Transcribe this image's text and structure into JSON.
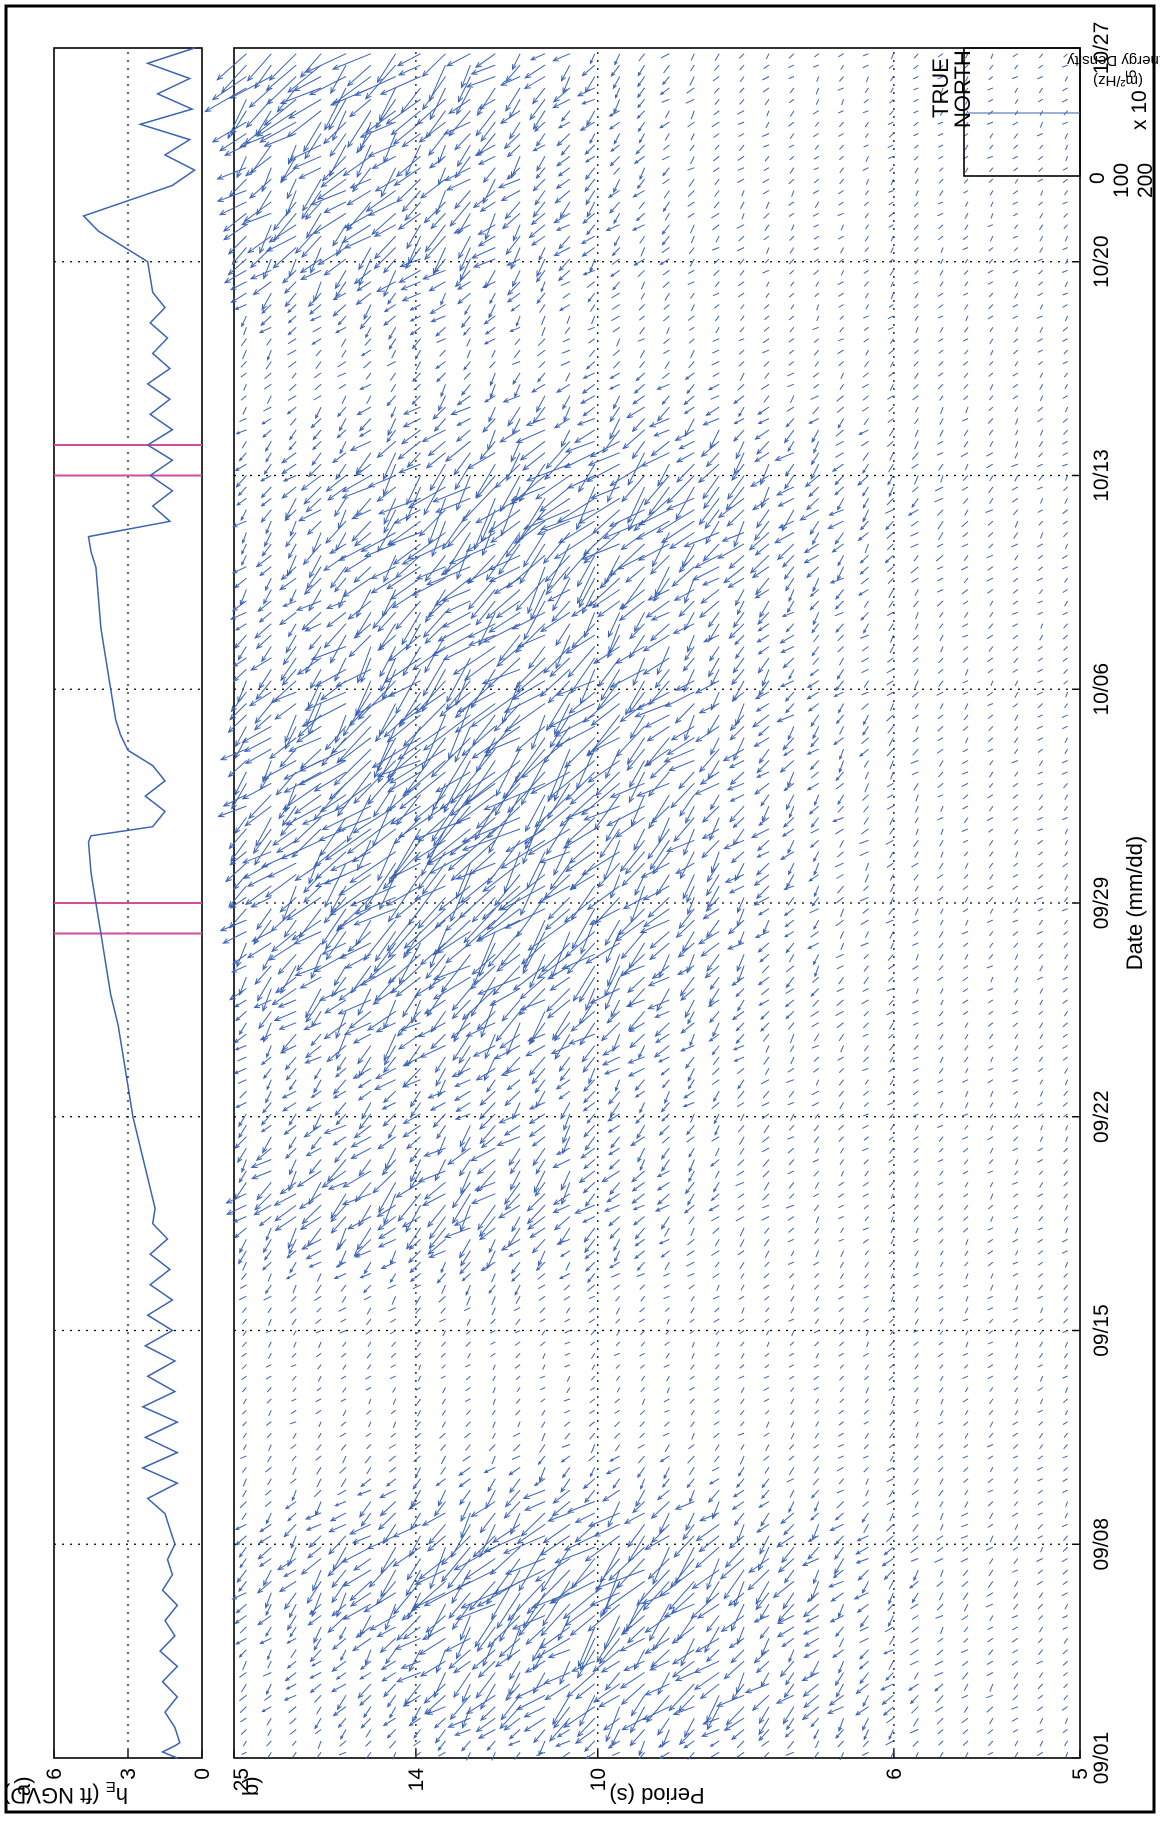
{
  "chart_data": [
    {
      "panel_tag": "a)",
      "type": "line",
      "ylabel": "h",
      "ylabel_sub": "E",
      "ylabel_unit": " (ft NGVD)",
      "ylim": [
        0,
        6
      ],
      "yticks": [
        0,
        3,
        6
      ],
      "grid": true,
      "series": [
        {
          "color": "#3a62b5",
          "x": [
            0.0,
            0.2,
            0.4,
            0.5,
            1.0,
            1.5,
            2.0,
            2.5,
            3.0,
            3.5,
            4.0,
            4.5,
            5.0,
            5.5,
            6.0,
            6.5,
            7.0,
            7.5,
            8.0,
            8.5,
            9.0,
            9.5,
            10.0,
            10.5,
            11.0,
            11.5,
            12.0,
            12.5,
            13.0,
            13.5,
            14.0,
            14.5,
            15.0,
            15.5,
            16.0,
            16.5,
            17.0,
            17.5,
            18.0,
            19.0,
            20.0,
            21.0,
            22.0,
            23.0,
            24.0,
            25.0,
            26.0,
            27.0,
            28.0,
            29.0,
            30.0,
            30.2,
            30.5,
            31.0,
            31.5,
            32.0,
            32.5,
            33.0,
            33.5,
            34.0,
            34.5,
            35.0,
            36.0,
            37.0,
            38.0,
            39.0,
            39.5,
            40.0,
            40.5,
            41.0,
            41.5,
            42.0,
            42.5,
            43.0,
            43.5,
            44.0,
            44.5,
            45.0,
            45.5,
            46.0,
            46.5,
            47.0,
            47.5,
            48.0,
            49.0,
            50.0,
            50.5,
            51.0,
            51.5,
            52.0,
            52.5,
            53.0,
            53.5,
            54.0,
            54.5,
            55.0,
            55.5,
            56.0
          ],
          "y": [
            1.0,
            1.6,
            1.1,
            0.9,
            1.1,
            1.5,
            1.0,
            1.6,
            1.0,
            1.7,
            1.1,
            1.5,
            1.0,
            1.6,
            1.2,
            1.4,
            1.1,
            1.3,
            1.5,
            2.2,
            1.0,
            2.4,
            1.0,
            2.3,
            1.0,
            2.4,
            1.1,
            2.2,
            1.1,
            2.3,
            1.2,
            2.2,
            1.2,
            2.1,
            1.3,
            2.1,
            1.4,
            2.0,
            1.9,
            2.2,
            2.5,
            2.8,
            3.0,
            3.2,
            3.4,
            3.7,
            3.9,
            4.1,
            4.3,
            4.5,
            4.6,
            4.5,
            2.0,
            1.5,
            2.3,
            1.5,
            2.0,
            3.0,
            3.3,
            3.5,
            3.6,
            3.7,
            3.9,
            4.1,
            4.2,
            4.3,
            4.5,
            4.6,
            1.3,
            2.0,
            1.2,
            2.1,
            1.2,
            2.2,
            1.2,
            2.1,
            1.3,
            2.2,
            1.3,
            2.0,
            1.4,
            2.1,
            1.5,
            2.0,
            2.2,
            4.2,
            4.8,
            3.0,
            1.2,
            0.3,
            1.5,
            0.5,
            2.5,
            0.4,
            1.8,
            0.5,
            2.2,
            0.3
          ]
        }
      ],
      "marker_color": "#d24d9e",
      "vertical_markers_x": [
        27.0,
        28.0,
        42.0,
        43.0
      ]
    },
    {
      "panel_tag": "b)",
      "type": "scatter",
      "title": "",
      "xlabel": "Date (mm/dd)",
      "ylabel": "Period (s)",
      "xticks": [
        "09/01",
        "09/08",
        "09/15",
        "09/22",
        "09/29",
        "10/06",
        "10/13",
        "10/20",
        "10/27"
      ],
      "xlim": [
        0,
        56
      ],
      "yticks": [
        "25",
        "14",
        "10",
        "6",
        "5"
      ],
      "grid": true,
      "arrow_color": "#3a62b5",
      "legend": {
        "label_1": "TRUE",
        "label_2": "NORTH",
        "scale_label": "Energy Density",
        "scale_unit": "(m²/Hz)",
        "scale_ticks": [
          "0",
          "100",
          "200"
        ],
        "scale_multiplier": "x 10",
        "scale_exponent": "5"
      },
      "energy_events": [
        {
          "center_day": 6.0,
          "width_days": 2.6,
          "peak_frac": 0.62,
          "strength": 1.0
        },
        {
          "center_day": 2.0,
          "width_days": 1.4,
          "peak_frac": 0.55,
          "strength": 0.55
        },
        {
          "center_day": 18.5,
          "width_days": 2.4,
          "peak_frac": 0.78,
          "strength": 0.5
        },
        {
          "center_day": 27.5,
          "width_days": 5.0,
          "peak_frac": 0.72,
          "strength": 0.9
        },
        {
          "center_day": 34.0,
          "width_days": 4.0,
          "peak_frac": 0.7,
          "strength": 1.0
        },
        {
          "center_day": 41.0,
          "width_days": 3.0,
          "peak_frac": 0.62,
          "strength": 0.95
        },
        {
          "center_day": 50.5,
          "width_days": 3.0,
          "peak_frac": 0.86,
          "strength": 0.6
        },
        {
          "center_day": 55.0,
          "width_days": 2.0,
          "peak_frac": 0.9,
          "strength": 0.8
        }
      ]
    }
  ]
}
